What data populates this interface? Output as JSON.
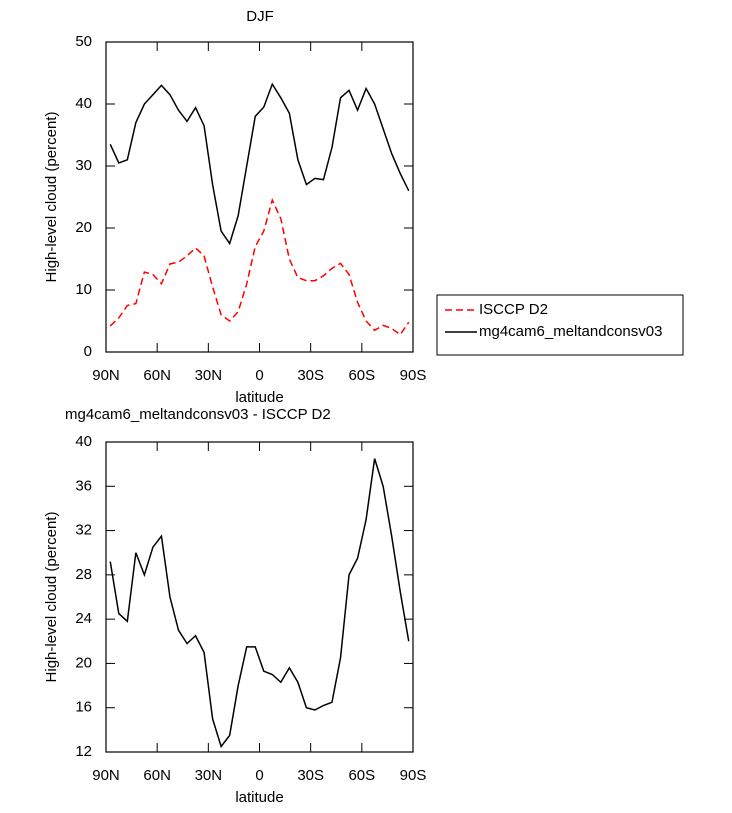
{
  "chart_data": [
    {
      "type": "line",
      "title": "DJF",
      "xlabel": "latitude",
      "ylabel": "High-level cloud (percent)",
      "x": [
        87.5,
        82.5,
        77.5,
        72.5,
        67.5,
        62.5,
        57.5,
        52.5,
        47.5,
        42.5,
        37.5,
        32.5,
        27.5,
        22.5,
        17.5,
        12.5,
        7.5,
        2.5,
        -2.5,
        -7.5,
        -12.5,
        -17.5,
        -22.5,
        -27.5,
        -32.5,
        -37.5,
        -42.5,
        -47.5,
        -52.5,
        -57.5,
        -62.5,
        -67.5,
        -72.5,
        -77.5,
        -82.5,
        -87.5
      ],
      "series": [
        {
          "name": "ISCCP D2",
          "color": "#ff0000",
          "dash": "dashed",
          "values": [
            4.2,
            5.5,
            7.5,
            7.8,
            12.9,
            12.5,
            11,
            14.2,
            14.5,
            15.5,
            16.8,
            15.5,
            10.5,
            6,
            5,
            6.5,
            11,
            17,
            19.5,
            24.5,
            21.5,
            15,
            12,
            11.5,
            11.5,
            12.3,
            13.5,
            14.3,
            12.5,
            8,
            5,
            3.5,
            4.3,
            3.8,
            2.8,
            4.8
          ]
        },
        {
          "name": "mg4cam6_meltandconsv03",
          "color": "#000000",
          "dash": "solid",
          "values": [
            33.5,
            30.5,
            31,
            37,
            40,
            41.5,
            43,
            41.5,
            39,
            37.2,
            39.4,
            36.5,
            27,
            19.5,
            17.5,
            22,
            30,
            38,
            39.5,
            43.2,
            41,
            38.5,
            31,
            27,
            28,
            27.8,
            33,
            41,
            42.2,
            39,
            42.5,
            40,
            36,
            32,
            28.8,
            26
          ]
        }
      ],
      "xlim": [
        90,
        -90
      ],
      "xticks": [
        {
          "value": 90,
          "label": "90N"
        },
        {
          "value": 60,
          "label": "60N"
        },
        {
          "value": 30,
          "label": "30N"
        },
        0,
        {
          "value": -30,
          "label": "30S"
        },
        {
          "value": -60,
          "label": "60S"
        },
        {
          "value": -90,
          "label": "90S"
        }
      ],
      "ylim": [
        0,
        50
      ],
      "yticks": [
        0,
        10,
        20,
        30,
        40,
        50
      ],
      "legend": "right"
    },
    {
      "type": "line",
      "title": "mg4cam6_meltandconsv03 - ISCCP D2",
      "xlabel": "latitude",
      "ylabel": "High-level cloud (percent)",
      "x": [
        87.5,
        82.5,
        77.5,
        72.5,
        67.5,
        62.5,
        57.5,
        52.5,
        47.5,
        42.5,
        37.5,
        32.5,
        27.5,
        22.5,
        17.5,
        12.5,
        7.5,
        2.5,
        -2.5,
        -7.5,
        -12.5,
        -17.5,
        -22.5,
        -27.5,
        -32.5,
        -37.5,
        -42.5,
        -47.5,
        -52.5,
        -57.5,
        -62.5,
        -67.5,
        -72.5,
        -77.5,
        -82.5,
        -87.5
      ],
      "series": [
        {
          "color": "#000000",
          "dash": "solid",
          "values": [
            29.2,
            24.5,
            23.8,
            30,
            28,
            30.5,
            31.5,
            26,
            23,
            21.8,
            22.5,
            21,
            15,
            12.5,
            13.5,
            18,
            21.5,
            21.5,
            19.3,
            19,
            18.3,
            19.6,
            18.3,
            16,
            15.8,
            16.2,
            16.5,
            20.5,
            28,
            29.5,
            33,
            38.5,
            36,
            31.5,
            26.5,
            22
          ]
        }
      ],
      "xlim": [
        90,
        -90
      ],
      "xticks": [
        {
          "value": 90,
          "label": "90N"
        },
        {
          "value": 60,
          "label": "60N"
        },
        {
          "value": 30,
          "label": "30N"
        },
        0,
        {
          "value": -30,
          "label": "30S"
        },
        {
          "value": -60,
          "label": "60S"
        },
        {
          "value": -90,
          "label": "90S"
        }
      ],
      "ylim": [
        12,
        40
      ],
      "yticks": [
        12,
        16,
        20,
        24,
        28,
        32,
        36,
        40
      ]
    }
  ]
}
